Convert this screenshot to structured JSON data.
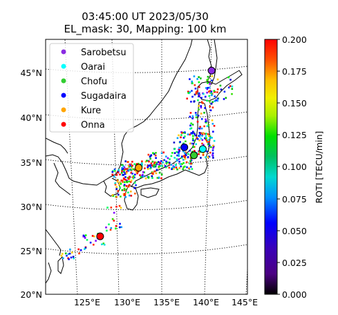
{
  "header": {
    "line1": "03:45:00 UT 2023/05/30",
    "line2": "EL_mask: 30, Mapping: 100 km"
  },
  "map": {
    "lat_labels": [
      "45°N",
      "40°N",
      "35°N",
      "30°N",
      "25°N",
      "20°N"
    ],
    "lon_labels": [
      "125°E",
      "130°E",
      "135°E",
      "140°E",
      "145°E"
    ]
  },
  "legend": {
    "items": [
      {
        "label": "Sarobetsu",
        "color": "#8a2be2"
      },
      {
        "label": "Oarai",
        "color": "#00ffff"
      },
      {
        "label": "Chofu",
        "color": "#32cd32"
      },
      {
        "label": "Sugadaira",
        "color": "#0000ff"
      },
      {
        "label": "Kure",
        "color": "#ffa500"
      },
      {
        "label": "Onna",
        "color": "#ff0000"
      }
    ]
  },
  "colorbar": {
    "label": "ROTI [TECU/min]",
    "ticks": [
      "0.200",
      "0.175",
      "0.150",
      "0.125",
      "0.100",
      "0.075",
      "0.050",
      "0.025",
      "0.000"
    ],
    "vmin": 0.0,
    "vmax": 0.2,
    "colormap": "nipy_spectral-like (black → purple → blue → cyan → green → yellow → orange → red)"
  },
  "stations": [
    {
      "name": "Sarobetsu",
      "lon": 141.7,
      "lat": 45.1,
      "color": "#8a2be2"
    },
    {
      "name": "Oarai",
      "lon": 140.6,
      "lat": 36.3,
      "color": "#00ffff"
    },
    {
      "name": "Chofu",
      "lon": 139.5,
      "lat": 35.6,
      "color": "#32cd32"
    },
    {
      "name": "Sugadaira",
      "lon": 138.3,
      "lat": 36.5,
      "color": "#0000ff"
    },
    {
      "name": "Kure",
      "lon": 132.6,
      "lat": 34.2,
      "color": "#ffa500"
    },
    {
      "name": "Onna",
      "lon": 127.8,
      "lat": 26.5,
      "color": "#ff0000"
    }
  ]
}
